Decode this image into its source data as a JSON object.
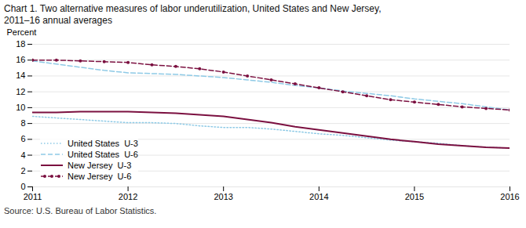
{
  "chart_data": {
    "type": "line",
    "title": "Chart 1. Two alternative measures of labor underutilization, United States and New Jersey,",
    "subtitle": "2011–16 annual averages",
    "ylabel": "Percent",
    "source": "Source: U.S. Bureau of Labor Statistics.",
    "x": [
      2011,
      2011.25,
      2011.5,
      2011.75,
      2012,
      2012.25,
      2012.5,
      2012.75,
      2013,
      2013.25,
      2013.5,
      2013.75,
      2014,
      2014.25,
      2014.5,
      2014.75,
      2015,
      2015.25,
      2015.5,
      2015.75,
      2016
    ],
    "series": [
      {
        "name": "United States  U-3",
        "color": "#8ECAE6",
        "line_style": "dotted",
        "values": [
          8.9,
          8.7,
          8.5,
          8.3,
          8.1,
          8.1,
          8.0,
          7.7,
          7.5,
          7.5,
          7.3,
          7.0,
          6.7,
          6.5,
          6.2,
          5.9,
          5.7,
          5.5,
          5.2,
          5.0,
          4.9
        ]
      },
      {
        "name": "United States  U-6",
        "color": "#8ECAE6",
        "line_style": "dashed",
        "values": [
          15.9,
          15.5,
          15.1,
          14.7,
          14.4,
          14.3,
          14.2,
          14.0,
          13.8,
          13.5,
          13.2,
          12.8,
          12.5,
          12.1,
          11.8,
          11.5,
          11.1,
          10.8,
          10.5,
          10.1,
          9.7
        ]
      },
      {
        "name": "New Jersey  U-3",
        "color": "#7B1040",
        "line_style": "solid",
        "values": [
          9.4,
          9.4,
          9.5,
          9.5,
          9.5,
          9.4,
          9.3,
          9.1,
          8.9,
          8.5,
          8.1,
          7.6,
          7.2,
          6.8,
          6.4,
          6.0,
          5.7,
          5.4,
          5.2,
          5.0,
          4.9
        ]
      },
      {
        "name": "New Jersey  U-6",
        "color": "#7B1040",
        "line_style": "dashed",
        "marker": "circle",
        "values": [
          16.0,
          16.0,
          15.9,
          15.8,
          15.7,
          15.4,
          15.2,
          14.9,
          14.5,
          14.0,
          13.5,
          13.0,
          12.5,
          12.0,
          11.5,
          11.0,
          10.7,
          10.4,
          10.1,
          9.9,
          9.7
        ]
      }
    ],
    "xlim": [
      2011,
      2016
    ],
    "xticks": [
      2011,
      2012,
      2013,
      2014,
      2015,
      2016
    ],
    "ylim": [
      0,
      18
    ],
    "yticks": [
      0,
      2,
      4,
      6,
      8,
      10,
      12,
      14,
      16,
      18
    ],
    "grid": true,
    "legend": "lower left"
  }
}
